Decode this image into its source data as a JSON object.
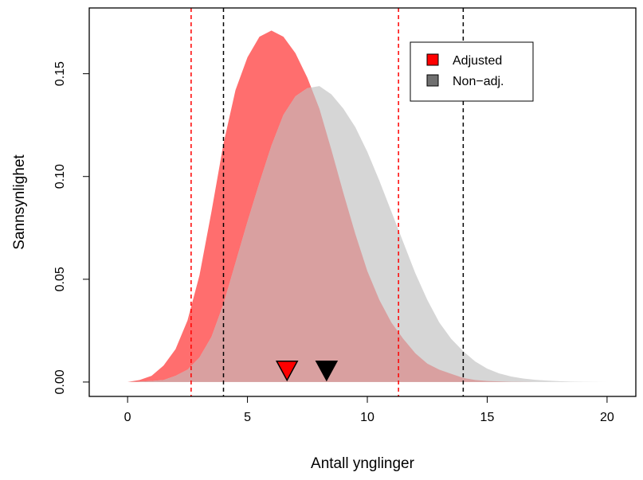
{
  "chart_data": {
    "type": "area",
    "xlabel": "Antall ynglinger",
    "ylabel": "Sannsynlighet",
    "xlim": [
      -1.6,
      21.2
    ],
    "ylim": [
      -0.007,
      0.182
    ],
    "x_ticks": [
      0,
      5,
      10,
      15,
      20
    ],
    "x_tick_labels": [
      "0",
      "5",
      "10",
      "15",
      "20"
    ],
    "y_ticks": [
      0.0,
      0.05,
      0.1,
      0.15
    ],
    "y_tick_labels": [
      "0.00",
      "0.05",
      "0.10",
      "0.15"
    ],
    "grid": false,
    "legend_position": "top-right",
    "series": [
      {
        "name": "Adjusted",
        "color": "#ff6e6e",
        "x": [
          0,
          0.5,
          1,
          1.5,
          2,
          2.5,
          3,
          3.5,
          4,
          4.5,
          5,
          5.5,
          6,
          6.5,
          7,
          7.5,
          8,
          8.5,
          9,
          9.5,
          10,
          10.5,
          11,
          11.5,
          12,
          12.5,
          13,
          13.5,
          14,
          14.5,
          15,
          15.5,
          16,
          16.5,
          17
        ],
        "y": [
          0.0,
          0.001,
          0.003,
          0.008,
          0.016,
          0.03,
          0.052,
          0.083,
          0.116,
          0.142,
          0.158,
          0.168,
          0.171,
          0.168,
          0.16,
          0.148,
          0.133,
          0.113,
          0.092,
          0.072,
          0.054,
          0.04,
          0.029,
          0.021,
          0.014,
          0.009,
          0.006,
          0.004,
          0.002,
          0.001,
          0.0005,
          0.0003,
          0.0001,
          5e-05,
          0.0
        ]
      },
      {
        "name": "Non−adj.",
        "color": "#d6d6d6",
        "x": [
          0,
          0.5,
          1,
          1.5,
          2,
          2.5,
          3,
          3.5,
          4,
          4.5,
          5,
          5.5,
          6,
          6.5,
          7,
          7.5,
          8,
          8.5,
          9,
          9.5,
          10,
          10.5,
          11,
          11.5,
          12,
          12.5,
          13,
          13.5,
          14,
          14.5,
          15,
          15.5,
          16,
          16.5,
          17,
          17.5,
          18,
          18.5,
          19,
          19.5,
          20
        ],
        "y": [
          0.0,
          0.0002,
          0.0005,
          0.001,
          0.003,
          0.006,
          0.012,
          0.022,
          0.038,
          0.058,
          0.078,
          0.097,
          0.115,
          0.13,
          0.139,
          0.143,
          0.144,
          0.14,
          0.133,
          0.124,
          0.112,
          0.098,
          0.083,
          0.068,
          0.053,
          0.04,
          0.029,
          0.021,
          0.015,
          0.01,
          0.0065,
          0.0042,
          0.0027,
          0.0017,
          0.0011,
          0.0007,
          0.0004,
          0.0002,
          0.0001,
          5e-05,
          0.0
        ]
      }
    ],
    "overlap_color": "#d9a0a0",
    "vlines": [
      {
        "x": 2.65,
        "color": "#ff0000",
        "style": "dashed"
      },
      {
        "x": 11.3,
        "color": "#ff0000",
        "style": "dashed"
      },
      {
        "x": 4.0,
        "color": "#000000",
        "style": "dashed"
      },
      {
        "x": 14.0,
        "color": "#000000",
        "style": "dashed"
      }
    ],
    "markers": [
      {
        "x": 6.65,
        "y": 0.0055,
        "shape": "triangle-down",
        "color": "#ff0000"
      },
      {
        "x": 8.3,
        "y": 0.0055,
        "shape": "triangle-down",
        "color": "#000000"
      }
    ],
    "legend": [
      {
        "label": "Adjusted",
        "color": "#ff0000"
      },
      {
        "label": "Non−adj.",
        "color": "#707070"
      }
    ]
  }
}
